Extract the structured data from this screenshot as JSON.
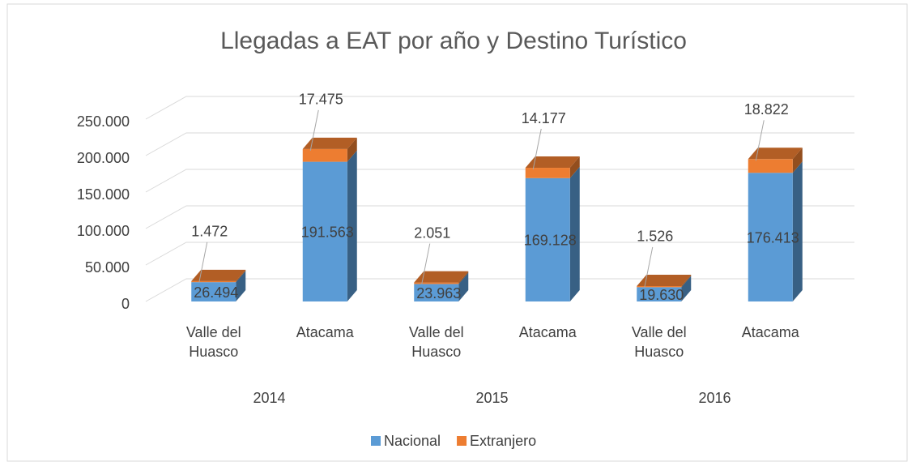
{
  "chart_data": {
    "type": "bar3d_stacked",
    "title": "Llegadas a EAT por año y Destino Turístico",
    "categories": [
      "Valle del Huasco",
      "Atacama",
      "Valle del Huasco",
      "Atacama",
      "Valle del Huasco",
      "Atacama"
    ],
    "groups": [
      "2014",
      "2015",
      "2016"
    ],
    "series": [
      {
        "name": "Nacional",
        "color": "#5b9bd5",
        "values": [
          26494,
          191563,
          23963,
          169128,
          19630,
          176413
        ],
        "value_labels": [
          "26.494",
          "191.563",
          "23.963",
          "169.128",
          "19.630",
          "176.413"
        ]
      },
      {
        "name": "Extranjero",
        "color": "#ed7d31",
        "values": [
          1472,
          17475,
          2051,
          14177,
          1526,
          18822
        ],
        "value_labels": [
          "1.472",
          "17.475",
          "2.051",
          "14.177",
          "1.526",
          "18.822"
        ]
      }
    ],
    "ylim": [
      0,
      250000
    ],
    "yticks": [
      0,
      {
        "value": 50000,
        "label": "50.000"
      },
      {
        "value": 100000,
        "label": "100.000"
      },
      {
        "value": 150000,
        "label": "150.000"
      },
      {
        "value": 200000,
        "label": "200.000"
      },
      {
        "value": 250000,
        "label": "250.000"
      }
    ],
    "grid": true,
    "legend": "bottom"
  }
}
